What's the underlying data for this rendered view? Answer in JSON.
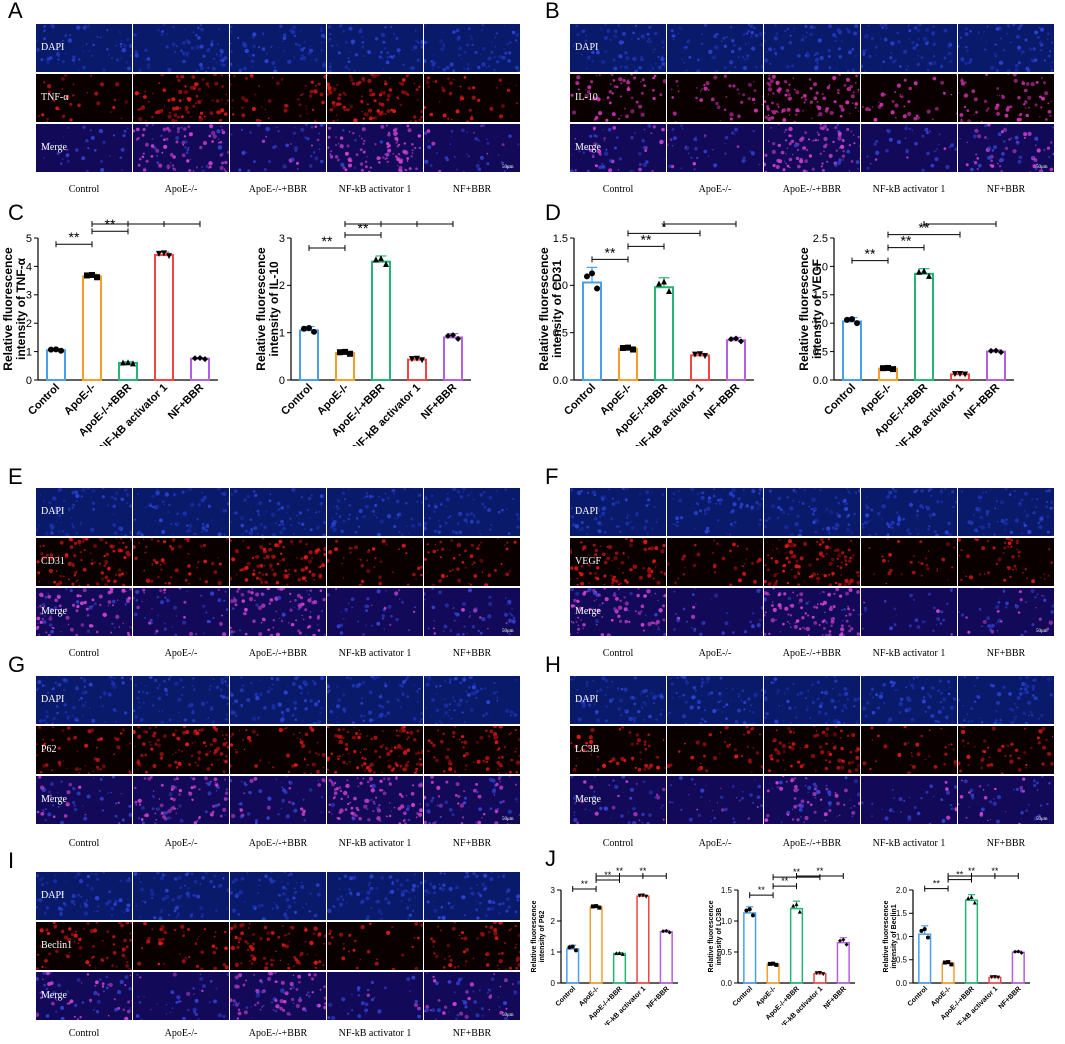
{
  "groups": [
    "Control",
    "ApoE-/-",
    "ApoE-/-+BBR",
    "NF-kB activator 1",
    "NF+BBR"
  ],
  "group_colors": [
    "#4a9fe8",
    "#f5a02a",
    "#22b573",
    "#f04545",
    "#b260e0"
  ],
  "scale_bar_label": "50μm",
  "sig_label": "**",
  "sig_label_single": "*",
  "image_panels": [
    {
      "id": "A",
      "rows": [
        "DAPI",
        "TNF-α",
        "Merge"
      ],
      "stain": "red-strong"
    },
    {
      "id": "B",
      "rows": [
        "DAPI",
        "IL-10",
        "Merge"
      ],
      "stain": "magenta"
    },
    {
      "id": "E",
      "rows": [
        "DAPI",
        "CD31",
        "Merge"
      ],
      "stain": "red"
    },
    {
      "id": "F",
      "rows": [
        "DAPI",
        "VEGF",
        "Merge"
      ],
      "stain": "red"
    },
    {
      "id": "G",
      "rows": [
        "DAPI",
        "P62",
        "Merge"
      ],
      "stain": "red-strong"
    },
    {
      "id": "H",
      "rows": [
        "DAPI",
        "LC3B",
        "Merge"
      ],
      "stain": "red"
    },
    {
      "id": "I",
      "rows": [
        "DAPI",
        "Beclin1",
        "Merge"
      ],
      "stain": "red"
    }
  ],
  "chart_panels": [
    {
      "id": "C"
    },
    {
      "id": "D"
    },
    {
      "id": "J"
    }
  ],
  "chart_data": [
    {
      "type": "bar",
      "panel": "C",
      "ylabel": "Relative fluorescence intensity of TNF-α",
      "ylim": [
        0,
        5
      ],
      "yticks": [
        0,
        1,
        2,
        3,
        4,
        5
      ],
      "categories": [
        "Control",
        "ApoE-/-",
        "ApoE-/-+BBR",
        "NF-kB activator 1",
        "NF+BBR"
      ],
      "values": [
        1.05,
        3.65,
        0.6,
        4.4,
        0.75
      ],
      "errors": [
        0.05,
        0.08,
        0.04,
        0.1,
        0.04
      ],
      "sig": [
        {
          "from": 0,
          "to": 1,
          "label": "**"
        },
        {
          "from": 1,
          "to": 2,
          "label": "**"
        },
        {
          "from": 1,
          "to": 3,
          "label": "**"
        },
        {
          "from": 2,
          "to": 4,
          "label": "**"
        }
      ]
    },
    {
      "type": "bar",
      "panel": "C",
      "ylabel": "Relative fluorescence intensity of IL-10",
      "ylim": [
        0,
        3
      ],
      "yticks": [
        0,
        1,
        2,
        3
      ],
      "categories": [
        "Control",
        "ApoE-/-",
        "ApoE-/-+BBR",
        "NF-kB activator 1",
        "NF+BBR"
      ],
      "values": [
        1.05,
        0.57,
        2.5,
        0.43,
        0.9
      ],
      "errors": [
        0.08,
        0.04,
        0.12,
        0.03,
        0.08
      ],
      "sig": [
        {
          "from": 0,
          "to": 1,
          "label": "**"
        },
        {
          "from": 1,
          "to": 2,
          "label": "**"
        },
        {
          "from": 1,
          "to": 3,
          "label": "**"
        },
        {
          "from": 2,
          "to": 4,
          "label": "**"
        }
      ]
    },
    {
      "type": "bar",
      "panel": "D",
      "ylabel": "Relative fluorescence intensity of CD31",
      "ylim": [
        0,
        1.5
      ],
      "yticks": [
        0,
        0.5,
        1.0,
        1.5
      ],
      "categories": [
        "Control",
        "ApoE-/-",
        "ApoE-/-+BBR",
        "NF-kB activator 1",
        "NF+BBR"
      ],
      "values": [
        1.03,
        0.33,
        0.98,
        0.26,
        0.42
      ],
      "errors": [
        0.16,
        0.02,
        0.1,
        0.02,
        0.03
      ],
      "sig": [
        {
          "from": 0,
          "to": 1,
          "label": "**"
        },
        {
          "from": 1,
          "to": 2,
          "label": "**"
        },
        {
          "from": 1,
          "to": 3,
          "label": "*"
        },
        {
          "from": 2,
          "to": 4,
          "label": "**"
        }
      ]
    },
    {
      "type": "bar",
      "panel": "D",
      "ylabel": "Relative fluorescence intensity of VEGF",
      "ylim": [
        0,
        2.5
      ],
      "yticks": [
        0,
        0.5,
        1.0,
        1.5,
        2.0,
        2.5
      ],
      "categories": [
        "Control",
        "ApoE-/-",
        "ApoE-/-+BBR",
        "NF-kB activator 1",
        "NF+BBR"
      ],
      "values": [
        1.03,
        0.2,
        1.87,
        0.1,
        0.5
      ],
      "errors": [
        0.07,
        0.02,
        0.09,
        0.01,
        0.03
      ],
      "sig": [
        {
          "from": 0,
          "to": 1,
          "label": "**"
        },
        {
          "from": 1,
          "to": 2,
          "label": "**"
        },
        {
          "from": 1,
          "to": 3,
          "label": "**"
        },
        {
          "from": 2,
          "to": 4,
          "label": "**"
        }
      ]
    },
    {
      "type": "bar",
      "panel": "J",
      "ylabel": "Relative fluorescence intensity of P62",
      "ylim": [
        0,
        3
      ],
      "yticks": [
        0,
        1,
        2,
        3
      ],
      "categories": [
        "Control",
        "ApoE-/-",
        "ApoE-/-+BBR",
        "NF-kB activator 1",
        "NF+BBR"
      ],
      "values": [
        1.1,
        2.45,
        0.95,
        2.8,
        1.65
      ],
      "errors": [
        0.12,
        0.05,
        0.03,
        0.04,
        0.05
      ],
      "sig": [
        {
          "from": 0,
          "to": 1,
          "label": "**"
        },
        {
          "from": 1,
          "to": 2,
          "label": "**"
        },
        {
          "from": 1,
          "to": 3,
          "label": "**"
        },
        {
          "from": 2,
          "to": 4,
          "label": "**"
        }
      ]
    },
    {
      "type": "bar",
      "panel": "J",
      "ylabel": "Relative fluorescence intensity of LC3B",
      "ylim": [
        0,
        1.5
      ],
      "yticks": [
        0,
        0.5,
        1.0,
        1.5
      ],
      "categories": [
        "Control",
        "ApoE-/-",
        "ApoE-/-+BBR",
        "NF-kB activator 1",
        "NF+BBR"
      ],
      "values": [
        1.13,
        0.3,
        1.2,
        0.15,
        0.65
      ],
      "errors": [
        0.1,
        0.02,
        0.12,
        0.02,
        0.08
      ],
      "sig": [
        {
          "from": 0,
          "to": 1,
          "label": "**"
        },
        {
          "from": 1,
          "to": 2,
          "label": "**"
        },
        {
          "from": 1,
          "to": 3,
          "label": "**"
        },
        {
          "from": 2,
          "to": 4,
          "label": "**"
        }
      ]
    },
    {
      "type": "bar",
      "panel": "J",
      "ylabel": "Relative fluorescence intensity of Beclin1",
      "ylim": [
        0,
        2.0
      ],
      "yticks": [
        0,
        0.5,
        1.0,
        1.5,
        2.0
      ],
      "categories": [
        "Control",
        "ApoE-/-",
        "ApoE-/-+BBR",
        "NF-kB activator 1",
        "NF+BBR"
      ],
      "values": [
        1.05,
        0.42,
        1.78,
        0.12,
        0.66
      ],
      "errors": [
        0.18,
        0.05,
        0.12,
        0.01,
        0.03
      ],
      "sig": [
        {
          "from": 0,
          "to": 1,
          "label": "**"
        },
        {
          "from": 1,
          "to": 2,
          "label": "**"
        },
        {
          "from": 1,
          "to": 3,
          "label": "**"
        },
        {
          "from": 2,
          "to": 4,
          "label": "**"
        }
      ]
    }
  ]
}
